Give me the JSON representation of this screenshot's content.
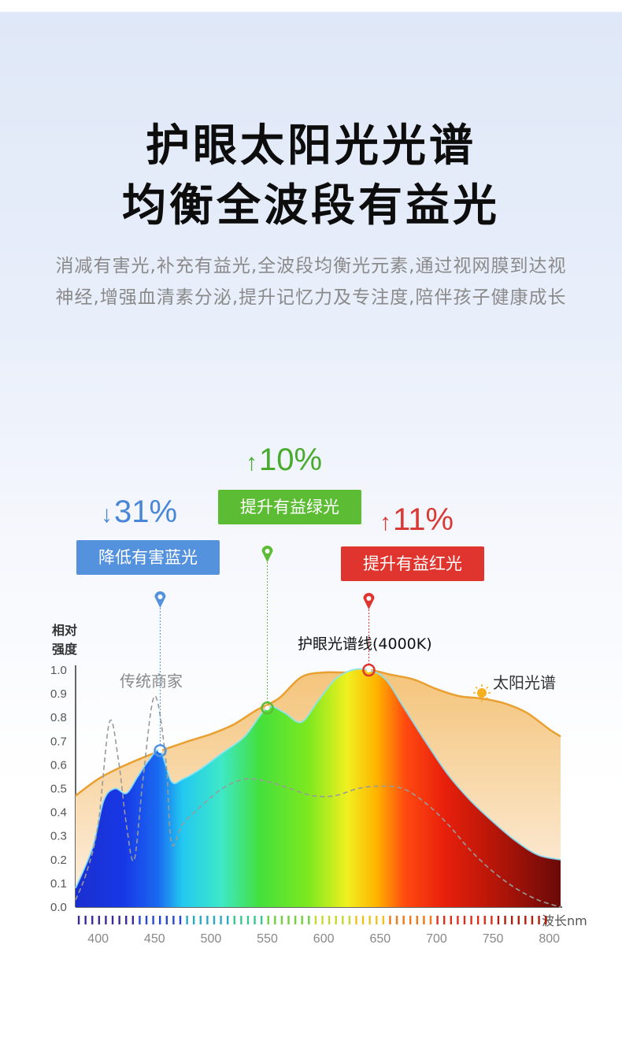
{
  "header": {
    "title_line1": "护眼太阳光光谱",
    "title_line2": "均衡全波段有益光",
    "description": "消减有害光,补充有益光,全波段均衡光元素,通过视网膜到达视神经,增强血清素分泌,提升记忆力及专注度,陪伴孩子健康成长"
  },
  "callouts": {
    "blue": {
      "arrow": "↓",
      "percent": "31%",
      "label": "降低有害蓝光",
      "color": "#5592de",
      "wavelength": 455
    },
    "green": {
      "arrow": "↑",
      "percent": "10%",
      "label": "提升有益绿光",
      "color": "#5cbd35",
      "wavelength": 550
    },
    "red": {
      "arrow": "↑",
      "percent": "11%",
      "label": "提升有益红光",
      "color": "#e0342e",
      "wavelength": 640
    }
  },
  "chart_data": {
    "type": "area",
    "ylabel": "相对\n强度",
    "xlabel": "波长nm",
    "xlim": [
      380,
      810
    ],
    "ylim": [
      0,
      1.0
    ],
    "xticks": [
      "400",
      "450",
      "500",
      "550",
      "600",
      "650",
      "700",
      "750",
      "800"
    ],
    "yticks": [
      "0.0",
      "0.1",
      "0.2",
      "0.3",
      "0.4",
      "0.5",
      "0.6",
      "0.7",
      "0.8",
      "0.9",
      "1.0"
    ],
    "series": [
      {
        "name": "太阳光谱",
        "style": "orange filled area",
        "color": "#e9a030",
        "x": [
          380,
          400,
          420,
          450,
          480,
          500,
          520,
          540,
          560,
          580,
          600,
          620,
          640,
          660,
          680,
          700,
          720,
          740,
          760,
          780,
          800,
          810
        ],
        "y": [
          0.47,
          0.54,
          0.59,
          0.65,
          0.7,
          0.73,
          0.77,
          0.83,
          0.88,
          0.97,
          0.99,
          0.99,
          1.0,
          0.98,
          0.96,
          0.92,
          0.89,
          0.88,
          0.86,
          0.82,
          0.75,
          0.72
        ]
      },
      {
        "name": "护眼光谱线(4000K)",
        "style": "rainbow gradient filled area",
        "x": [
          380,
          395,
          405,
          415,
          425,
          435,
          445,
          455,
          465,
          475,
          490,
          510,
          530,
          550,
          565,
          580,
          595,
          610,
          625,
          640,
          655,
          670,
          690,
          710,
          730,
          750,
          770,
          790,
          810
        ],
        "y": [
          0.08,
          0.25,
          0.45,
          0.5,
          0.48,
          0.55,
          0.62,
          0.66,
          0.53,
          0.54,
          0.58,
          0.65,
          0.72,
          0.84,
          0.82,
          0.78,
          0.87,
          0.96,
          1.0,
          1.0,
          0.96,
          0.85,
          0.7,
          0.56,
          0.45,
          0.36,
          0.28,
          0.22,
          0.2
        ]
      },
      {
        "name": "传统商家",
        "style": "dashed grey line",
        "color": "#9a9a9a",
        "x": [
          380,
          390,
          400,
          410,
          418,
          425,
          432,
          440,
          450,
          460,
          465,
          475,
          490,
          510,
          530,
          550,
          570,
          590,
          610,
          630,
          650,
          670,
          690,
          710,
          730,
          750,
          770,
          790,
          810
        ],
        "y": [
          0.03,
          0.15,
          0.35,
          0.78,
          0.62,
          0.35,
          0.2,
          0.55,
          0.89,
          0.62,
          0.27,
          0.35,
          0.42,
          0.5,
          0.54,
          0.53,
          0.5,
          0.47,
          0.47,
          0.5,
          0.51,
          0.5,
          0.44,
          0.35,
          0.24,
          0.15,
          0.08,
          0.03,
          0.0
        ]
      }
    ],
    "annotations": {
      "legacy_label": "传统商家",
      "sun_label": "太阳光谱",
      "eye_line_label": "护眼光谱线(4000K)"
    },
    "colors": {
      "blue": "#5592de",
      "green": "#5cbd35",
      "red": "#e0342e",
      "sun": "#e9a030"
    }
  }
}
